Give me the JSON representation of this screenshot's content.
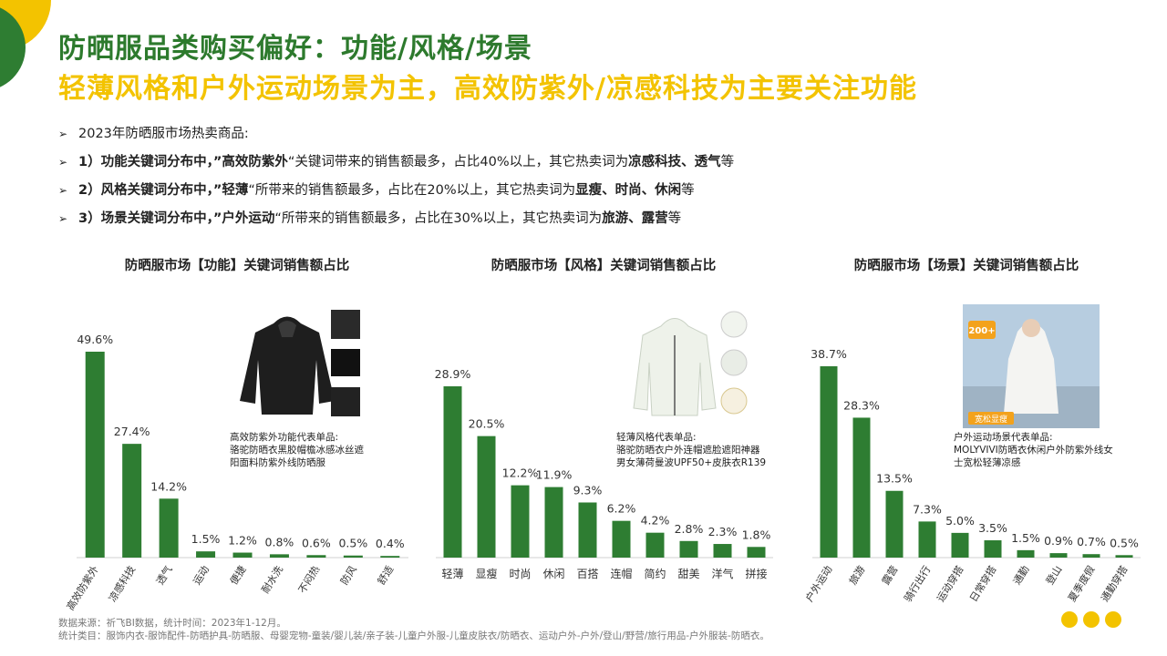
{
  "title": "防晒服品类购买偏好：功能/风格/场景",
  "subtitle": "轻薄风格和户外运动场景为主，高效防紫外/凉感科技为主要关注功能",
  "bullets": [
    {
      "pre": "2023年防晒服市场热卖商品:",
      "bold": "",
      "mid": "",
      "bold2": "",
      "post": ""
    },
    {
      "pre": "1）功能关键词分布中，”",
      "bold": "高效防紫外",
      "mid": "“关键词带来的销售额最多，占比40%以上，其它热卖词为",
      "bold2": "凉感科技、透气",
      "post": "等"
    },
    {
      "pre": "2）风格关键词分布中，”",
      "bold": "轻薄",
      "mid": "“所带来的销售额最多，占比在20%以上，其它热卖词为",
      "bold2": "显瘦、时尚、休闲",
      "post": "等"
    },
    {
      "pre": "3）场景关键词分布中，”",
      "bold": "户外运动",
      "mid": "“所带来的销售额最多，占比在30%以上，其它热卖词为",
      "bold2": "旅游、露营",
      "post": "等"
    }
  ],
  "chart_data": [
    {
      "type": "bar",
      "title": "防晒服市场【功能】关键词销售额占比",
      "categories": [
        "高效防紫外",
        "凉感科技",
        "透气",
        "运动",
        "便捷",
        "耐水洗",
        "不闷热",
        "防风",
        "舒适"
      ],
      "values": [
        49.6,
        27.4,
        14.2,
        1.5,
        1.2,
        0.8,
        0.6,
        0.5,
        0.4
      ],
      "value_labels": [
        "49.6%",
        "27.4%",
        "14.2%",
        "1.5%",
        "1.2%",
        "0.8%",
        "0.6%",
        "0.5%",
        "0.4%"
      ],
      "label_rotated": true,
      "annotation": [
        "高效防紫外功能代表单品:",
        "骆驼防晒衣黑胶帽檐冰感冰丝遮",
        "阳面料防紫外线防晒服"
      ]
    },
    {
      "type": "bar",
      "title": "防晒服市场【风格】关键词销售额占比",
      "categories": [
        "轻薄",
        "显瘦",
        "时尚",
        "休闲",
        "百搭",
        "连帽",
        "简约",
        "甜美",
        "洋气",
        "拼接"
      ],
      "values": [
        28.9,
        20.5,
        12.2,
        11.9,
        9.3,
        6.2,
        4.2,
        2.8,
        2.3,
        1.8
      ],
      "value_labels": [
        "28.9%",
        "20.5%",
        "12.2%",
        "11.9%",
        "9.3%",
        "6.2%",
        "4.2%",
        "2.8%",
        "2.3%",
        "1.8%"
      ],
      "label_rotated": false,
      "annotation": [
        "轻薄风格代表单品:",
        "骆驼防晒衣户外连帽遮脸遮阳神器",
        "男女薄荷曼波UPF50+皮肤衣R139"
      ]
    },
    {
      "type": "bar",
      "title": "防晒服市场【场景】关键词销售额占比",
      "categories": [
        "户外运动",
        "旅游",
        "露营",
        "骑行出行",
        "运动穿搭",
        "日常穿搭",
        "通勤",
        "登山",
        "夏季度假",
        "通勤穿搭"
      ],
      "values": [
        38.7,
        28.3,
        13.5,
        7.3,
        5.0,
        3.5,
        1.5,
        0.9,
        0.7,
        0.5
      ],
      "value_labels": [
        "38.7%",
        "28.3%",
        "13.5%",
        "7.3%",
        "5.0%",
        "3.5%",
        "1.5%",
        "0.9%",
        "0.7%",
        "0.5%"
      ],
      "label_rotated": true,
      "annotation": [
        "户外运动场景代表单品:",
        "MOLYVIVI防晒衣休闲户外防紫外线女",
        "士宽松轻薄凉感"
      ],
      "photo_badges": [
        "200+",
        "宽松显瘦"
      ]
    }
  ],
  "footer": [
    "数据来源：祈飞BI数据，统计时间：2023年1-12月。",
    "统计类目：服饰内衣-服饰配件-防晒护具-防晒服、母婴宠物-童装/婴儿装/亲子装-儿童户外服-儿童皮肤衣/防晒衣、运动户外-户外/登山/野营/旅行用品-户外服装-防晒衣。"
  ],
  "colors": {
    "bar": "#2e7d32",
    "title": "#2d7a2d",
    "accent": "#f3c300"
  }
}
